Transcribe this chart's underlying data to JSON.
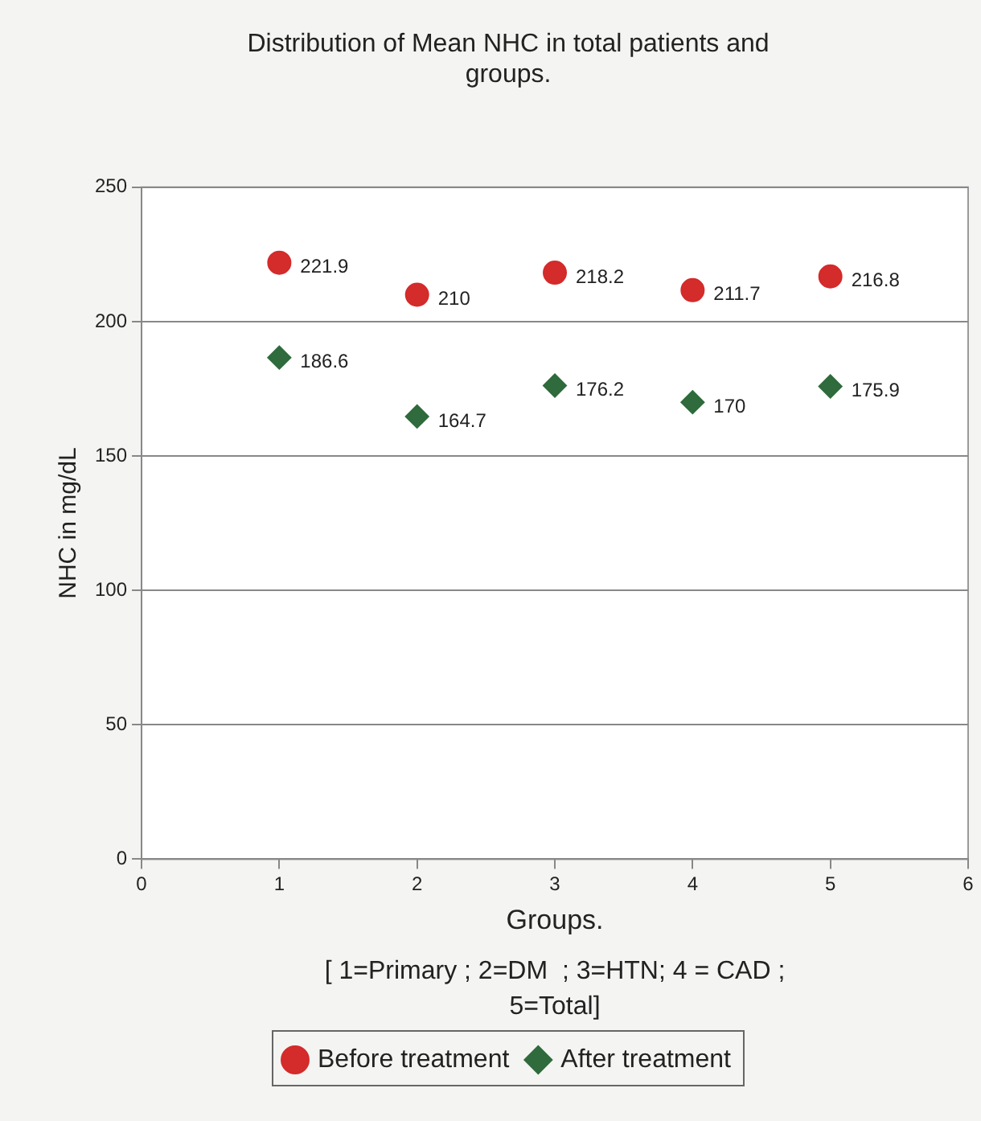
{
  "chart_data": {
    "type": "scatter",
    "title": [
      "Distribution of Mean NHC in total patients and",
      "groups."
    ],
    "xlabel": "Groups.",
    "ylabel": "NHC in mg/dL",
    "annotations": [
      "[ 1=Primary ; 2=DM  ; 3=HTN; 4 = CAD ;",
      "5=Total]"
    ],
    "x": [
      1,
      2,
      3,
      4,
      5
    ],
    "series": [
      {
        "name": "Before treatment",
        "color": "#d42b2b",
        "marker": "circle",
        "values": [
          221.9,
          210,
          218.2,
          211.7,
          216.8
        ]
      },
      {
        "name": "After treatment",
        "color": "#2f6b3c",
        "marker": "diamond",
        "values": [
          186.6,
          164.7,
          176.2,
          170,
          175.9
        ]
      }
    ],
    "xlim": [
      0,
      6
    ],
    "xticks": [
      0,
      1,
      2,
      3,
      4,
      5,
      6
    ],
    "ylim": [
      0,
      250
    ],
    "yticks": [
      0,
      50,
      100,
      150,
      200,
      250
    ],
    "grid": "y",
    "legend": "bottom",
    "data_labels": true
  }
}
